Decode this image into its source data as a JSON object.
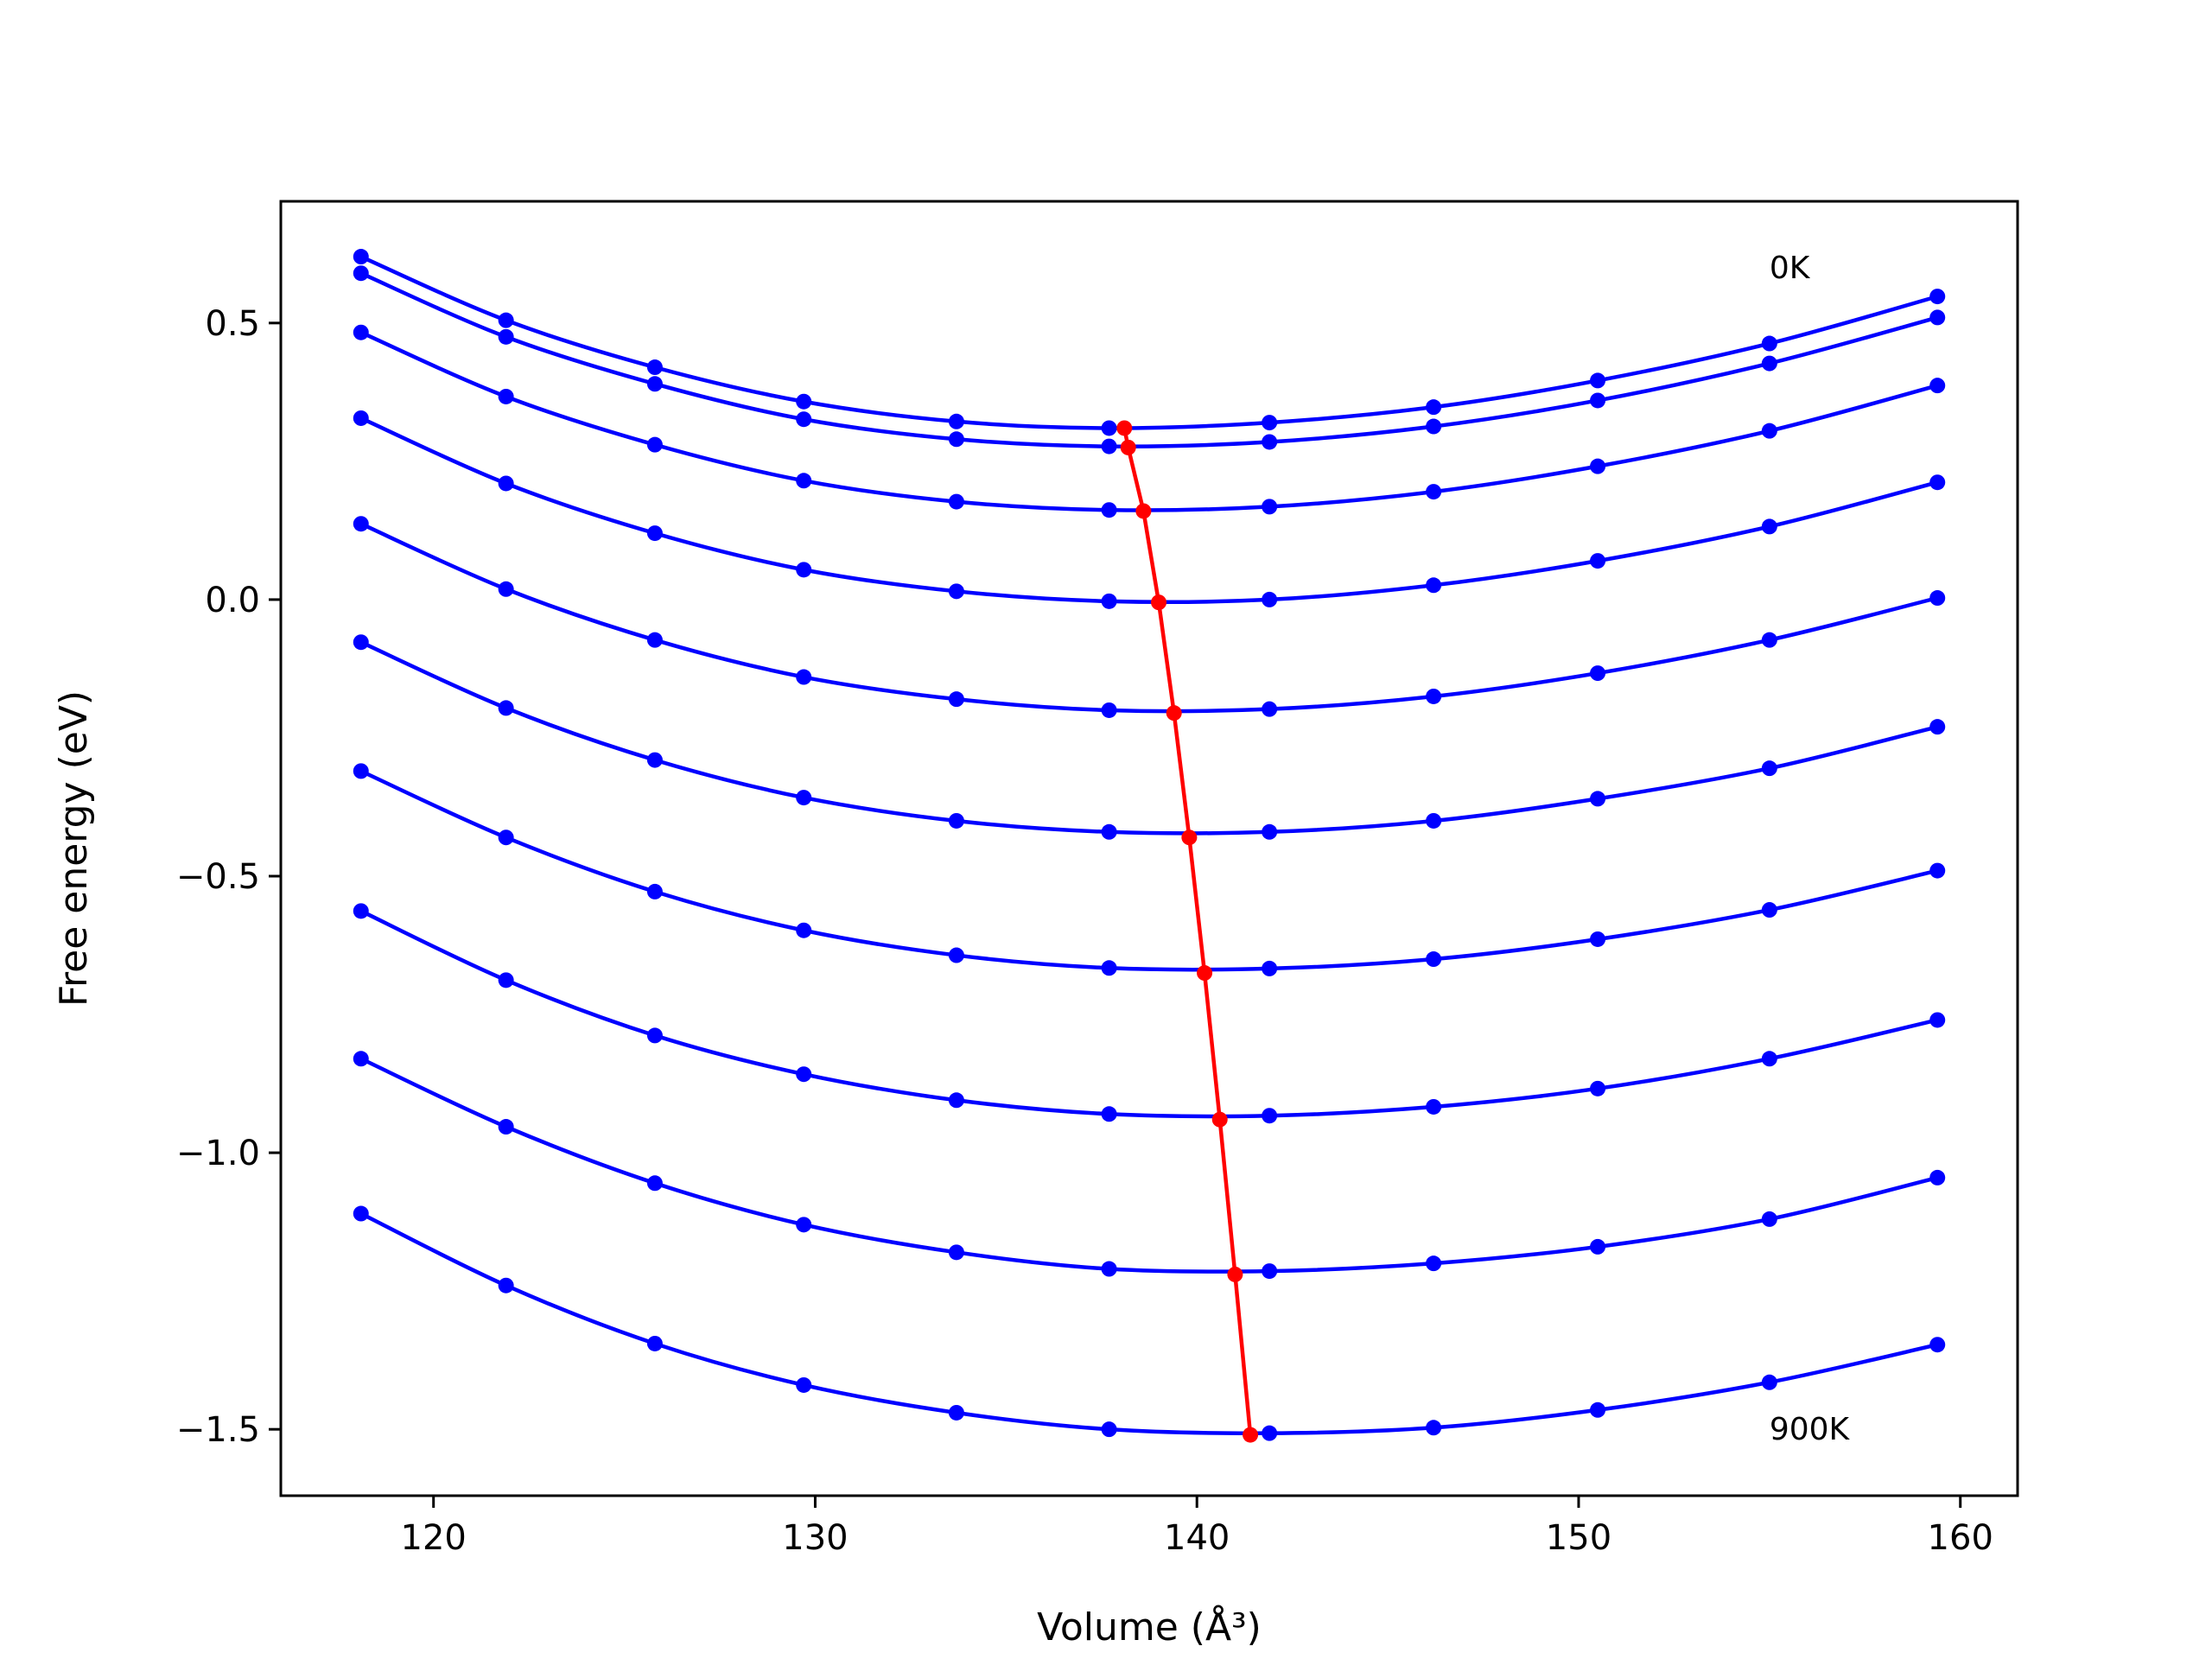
{
  "chart_data": {
    "type": "line",
    "title": "",
    "xlabel": "Volume (Å³)",
    "ylabel": "Free energy (eV)",
    "xlim": [
      116,
      161.5
    ],
    "ylim": [
      -1.62,
      0.72
    ],
    "xticks": [
      120,
      130,
      140,
      150,
      160
    ],
    "xtick_labels": [
      "120",
      "130",
      "140",
      "150",
      "160"
    ],
    "yticks": [
      0.5,
      0.0,
      -0.5,
      -1.0,
      -1.5
    ],
    "ytick_labels": [
      "0.5",
      "0.0",
      "−0.5",
      "−1.0",
      "−1.5"
    ],
    "grid": false,
    "x": [
      118.1,
      121.9,
      125.8,
      129.7,
      133.7,
      137.7,
      141.9,
      146.2,
      150.5,
      155.0,
      159.4
    ],
    "series": [
      {
        "values": [
          0.62,
          0.505,
          0.42,
          0.358,
          0.322,
          0.31,
          0.32,
          0.348,
          0.396,
          0.463,
          0.548
        ]
      },
      {
        "values": [
          0.59,
          0.475,
          0.39,
          0.326,
          0.29,
          0.277,
          0.285,
          0.313,
          0.36,
          0.427,
          0.51
        ]
      },
      {
        "values": [
          0.483,
          0.367,
          0.28,
          0.215,
          0.177,
          0.162,
          0.168,
          0.195,
          0.241,
          0.305,
          0.387
        ]
      },
      {
        "values": [
          0.328,
          0.21,
          0.12,
          0.054,
          0.015,
          -0.003,
          0.0,
          0.026,
          0.07,
          0.132,
          0.212
        ]
      },
      {
        "values": [
          0.137,
          0.019,
          -0.073,
          -0.14,
          -0.18,
          -0.2,
          -0.198,
          -0.175,
          -0.133,
          -0.073,
          0.003
        ]
      },
      {
        "values": [
          -0.077,
          -0.196,
          -0.29,
          -0.358,
          -0.4,
          -0.42,
          -0.42,
          -0.4,
          -0.36,
          -0.305,
          -0.23
        ]
      },
      {
        "values": [
          -0.31,
          -0.43,
          -0.528,
          -0.598,
          -0.643,
          -0.666,
          -0.667,
          -0.65,
          -0.614,
          -0.561,
          -0.49
        ]
      },
      {
        "values": [
          -0.563,
          -0.688,
          -0.788,
          -0.858,
          -0.905,
          -0.93,
          -0.933,
          -0.917,
          -0.884,
          -0.83,
          -0.76
        ]
      },
      {
        "values": [
          -0.83,
          -0.953,
          -1.055,
          -1.13,
          -1.18,
          -1.21,
          -1.214,
          -1.2,
          -1.17,
          -1.12,
          -1.045
        ]
      },
      {
        "values": [
          -1.11,
          -1.24,
          -1.345,
          -1.42,
          -1.47,
          -1.5,
          -1.507,
          -1.497,
          -1.465,
          -1.415,
          -1.347
        ]
      }
    ],
    "minima": {
      "x": [
        138.1,
        138.2,
        138.6,
        139.0,
        139.4,
        139.8,
        140.2,
        140.6,
        141.0,
        141.4
      ],
      "y": [
        0.31,
        0.275,
        0.16,
        -0.005,
        -0.205,
        -0.43,
        -0.675,
        -0.94,
        -1.22,
        -1.51
      ]
    },
    "annotations": [
      {
        "text": "0K",
        "x": 155.0,
        "y": 0.6
      },
      {
        "text": "900K",
        "x": 155.0,
        "y": -1.5
      }
    ],
    "colors": {
      "curves": "#0000ff",
      "minima": "#ff0000",
      "axes": "#000000"
    }
  }
}
